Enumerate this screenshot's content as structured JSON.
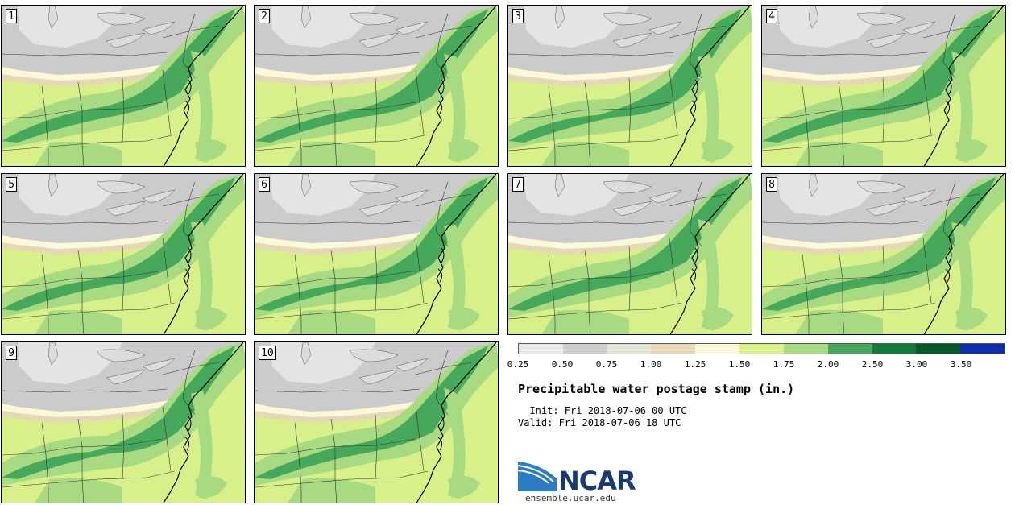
{
  "panels": [
    "1",
    "2",
    "3",
    "4",
    "5",
    "6",
    "7",
    "8",
    "9",
    "10"
  ],
  "legend": {
    "colors": [
      "#e9e9e9",
      "#cdcdcd",
      "#e4e4d4",
      "#e6d8b6",
      "#fcf9d8",
      "#d8f08a",
      "#a8da82",
      "#46a85a",
      "#117a3a",
      "#055a2a",
      "#0b2fb0"
    ],
    "ticks": [
      "0.25",
      "0.50",
      "0.75",
      "1.00",
      "1.25",
      "1.50",
      "1.75",
      "2.00",
      "2.50",
      "3.00",
      "3.50"
    ]
  },
  "title": "Precipitable water postage stamp (in.)",
  "init_text": "  Init: Fri 2018-07-06 00 UTC",
  "valid_text": "Valid: Fri 2018-07-06 18 UTC",
  "logo": {
    "name": "NCAR",
    "url": "ensemble.ucar.edu"
  },
  "palette": {
    "gray_light": "#e4e4e4",
    "gray": "#cbcbcb",
    "tan": "#e6d8b6",
    "cream": "#fcf9d8",
    "yellowgreen": "#d8f08a",
    "lightgreen": "#a8da82",
    "green": "#46a85a",
    "lake": "#dcdcdc"
  }
}
